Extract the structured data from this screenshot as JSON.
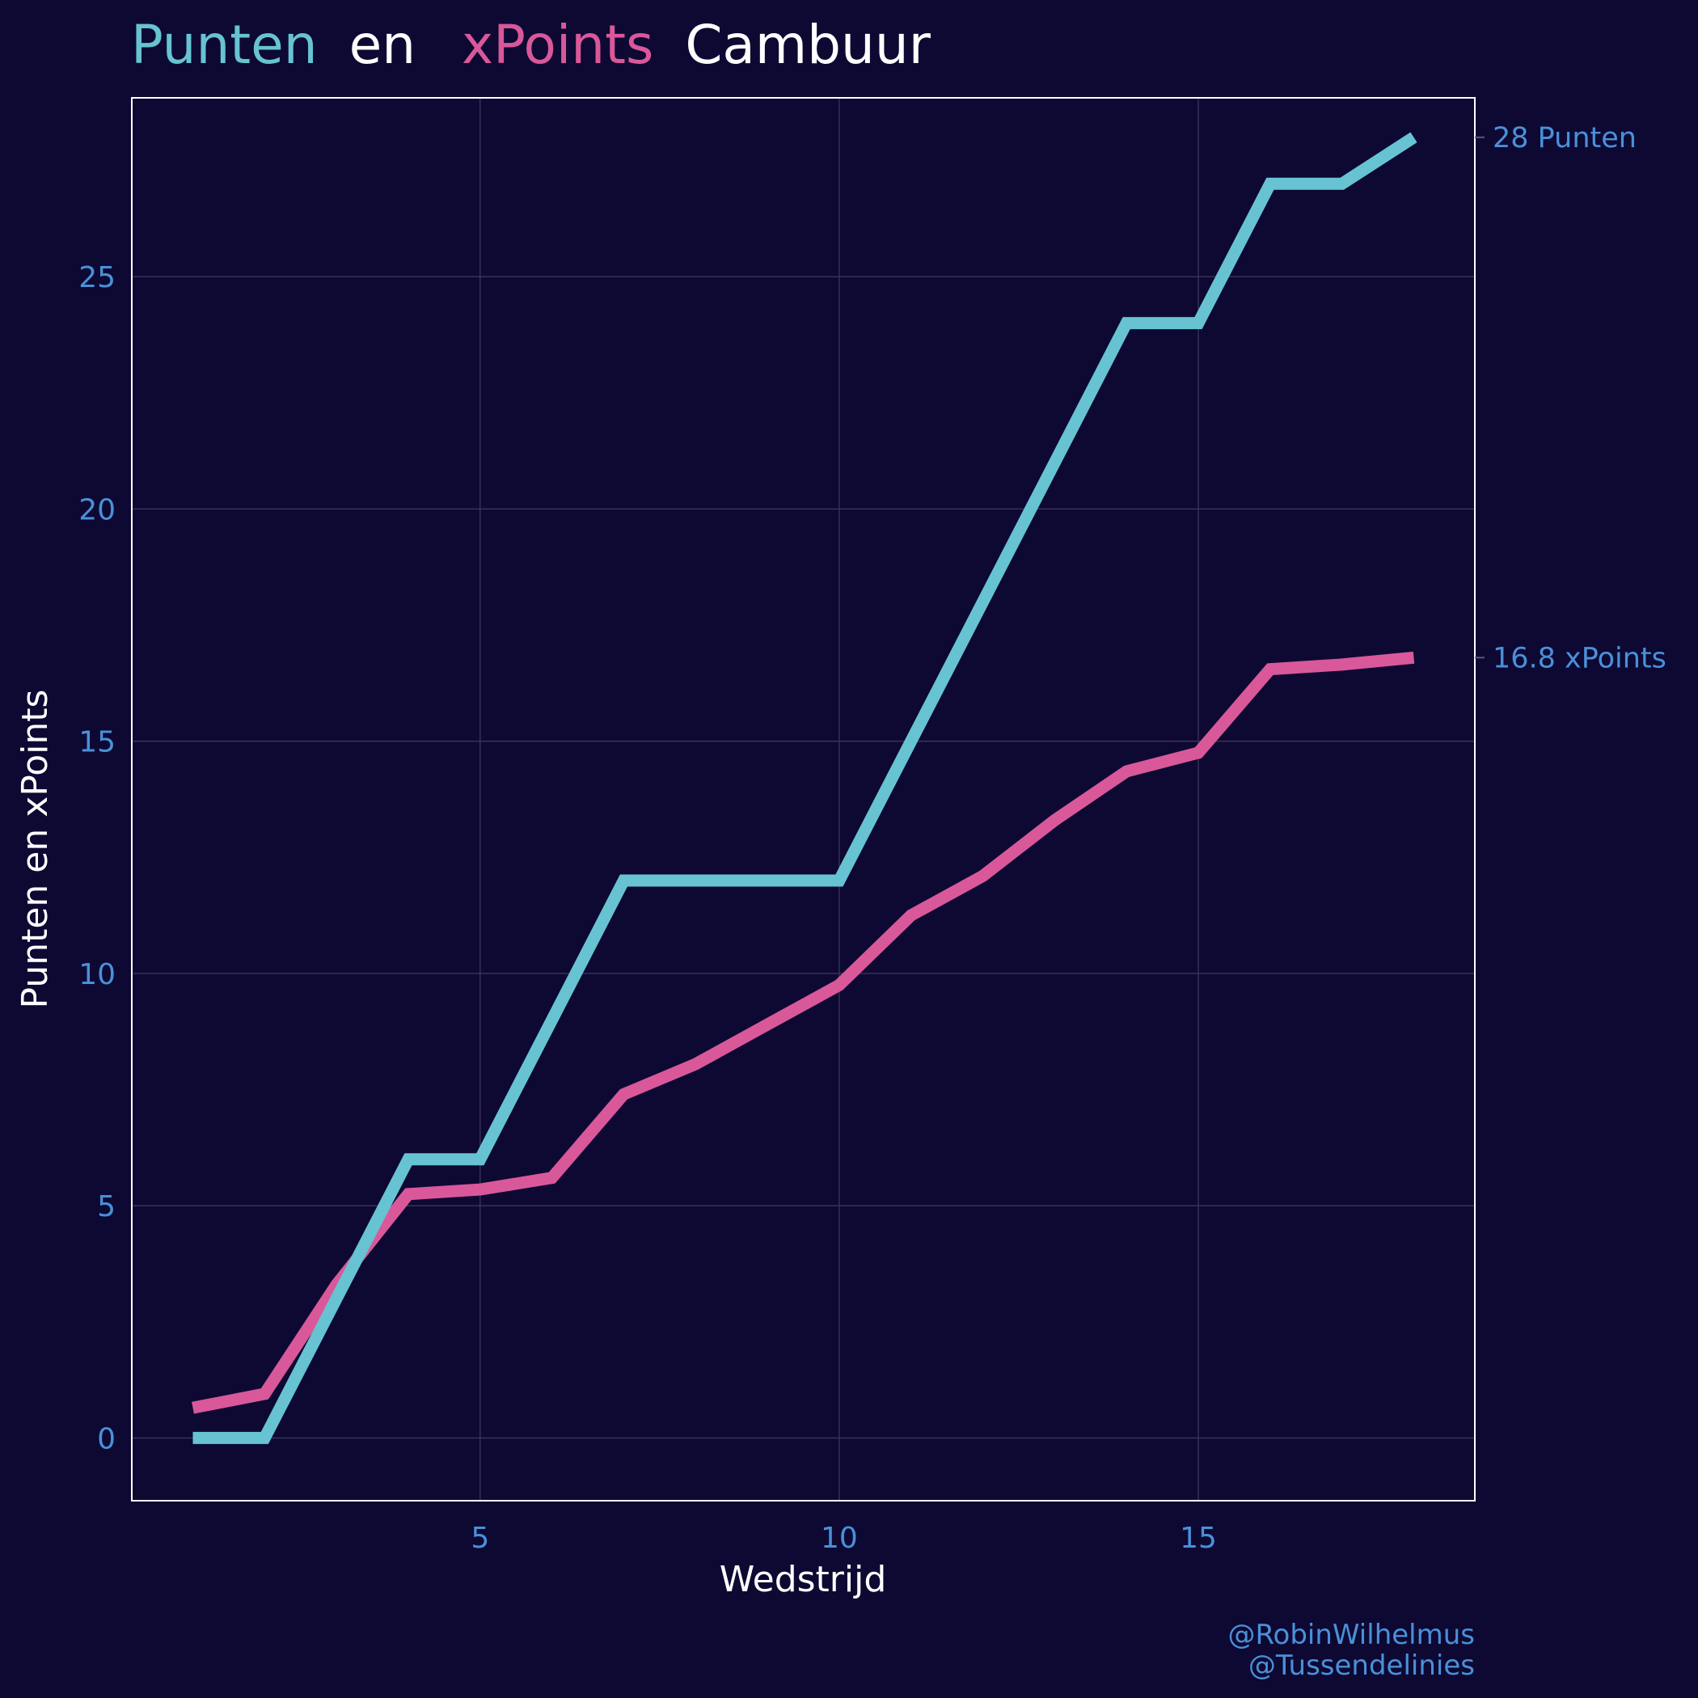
{
  "title": {
    "part1": "Punten",
    "part2": "en",
    "part3": "xPoints",
    "part4": "Cambuur"
  },
  "credits": [
    "@RobinWilhelmus",
    "@Tussendelinies"
  ],
  "colors": {
    "background": "#0d0933",
    "punten": "#67c3d1",
    "xpoints": "#d9589a",
    "tick_text": "#4a90d9",
    "title_white": "#ffffff",
    "grid": "#3a365a",
    "frame": "#ffffff"
  },
  "chart_data": {
    "type": "line",
    "xlabel": "Wedstrijd",
    "ylabel": "Punten en xPoints",
    "xlim": [
      0.15,
      18.85
    ],
    "ylim": [
      -1.35,
      28.85
    ],
    "xticks": [
      5,
      10,
      15
    ],
    "yticks": [
      0,
      5,
      10,
      15,
      20,
      25
    ],
    "grid": true,
    "x": [
      1,
      2,
      3,
      4,
      5,
      6,
      7,
      8,
      9,
      10,
      11,
      12,
      13,
      14,
      15,
      16,
      17,
      18
    ],
    "series": [
      {
        "name": "Punten",
        "values": [
          0,
          0,
          3,
          6,
          6,
          9,
          12,
          12,
          12,
          12,
          15,
          18,
          21,
          24,
          24,
          27,
          27,
          28
        ],
        "end_label": "28 Punten"
      },
      {
        "name": "xPoints",
        "values": [
          0.65,
          0.95,
          3.3,
          5.25,
          5.35,
          5.6,
          7.4,
          8.05,
          8.9,
          9.75,
          11.25,
          12.1,
          13.3,
          14.35,
          14.75,
          16.55,
          16.65,
          16.8
        ],
        "end_label": "16.8 xPoints"
      }
    ]
  }
}
